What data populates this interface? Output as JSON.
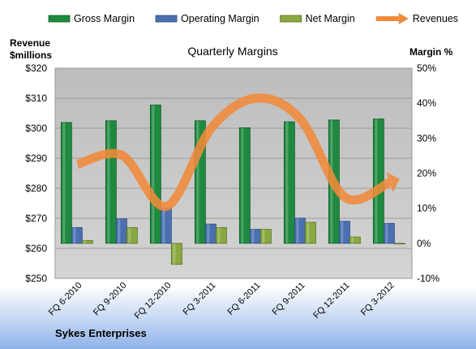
{
  "chart_data": {
    "type": "bar",
    "title": "Quarterly Margins",
    "company": "Sykes Enterprises",
    "left_axis_label": [
      "Revenue",
      "$millions"
    ],
    "right_axis_label": "Margin %",
    "left_ticks": [
      "$320",
      "$310",
      "$300",
      "$290",
      "$280",
      "$270",
      "$260",
      "$250"
    ],
    "right_ticks": [
      "50%",
      "40%",
      "30%",
      "20%",
      "10%",
      "0%",
      "-10%"
    ],
    "left_range": [
      250,
      320
    ],
    "right_range": [
      -10,
      50
    ],
    "grid": true,
    "legend_position": "top",
    "categories": [
      "FQ 6-2010",
      "FQ 9-2010",
      "FQ 12-2010",
      "FQ 3-2011",
      "FQ 6-2011",
      "FQ 9-2011",
      "FQ 12-2011",
      "FQ 3-2012"
    ],
    "series": [
      {
        "name": "Gross Margin",
        "axis": "right",
        "kind": "bar",
        "color": "#1f8a3f",
        "values": [
          34.5,
          35.0,
          39.5,
          35.0,
          33.0,
          34.7,
          35.2,
          35.5
        ]
      },
      {
        "name": "Operating Margin",
        "axis": "right",
        "kind": "bar",
        "color": "#4a70b0",
        "values": [
          4.5,
          7.0,
          10.0,
          5.5,
          4.0,
          7.2,
          6.3,
          5.7
        ]
      },
      {
        "name": "Net Margin",
        "axis": "right",
        "kind": "bar",
        "color": "#8aa840",
        "values": [
          0.8,
          4.5,
          -6.0,
          4.5,
          4.0,
          6.0,
          1.8,
          0.0
        ]
      },
      {
        "name": "Revenues",
        "axis": "left",
        "kind": "line",
        "color": "#f08a3a",
        "values": [
          288,
          291,
          274,
          300,
          310,
          303,
          277,
          282
        ]
      }
    ]
  }
}
